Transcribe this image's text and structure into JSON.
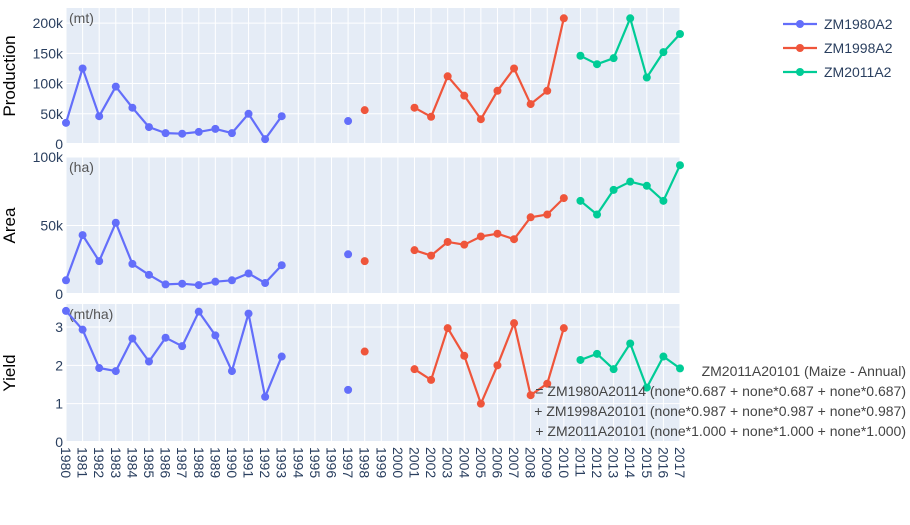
{
  "chart_data": {
    "type": "line",
    "x": [
      1980,
      1981,
      1982,
      1983,
      1984,
      1985,
      1986,
      1987,
      1988,
      1989,
      1990,
      1991,
      1992,
      1993,
      1994,
      1995,
      1996,
      1997,
      1998,
      1999,
      2000,
      2001,
      2002,
      2003,
      2004,
      2005,
      2006,
      2007,
      2008,
      2009,
      2010,
      2011,
      2012,
      2013,
      2014,
      2015,
      2016,
      2017
    ],
    "x_tick_labels": [
      "1980",
      "1981",
      "1982",
      "1983",
      "1984",
      "1985",
      "1986",
      "1987",
      "1988",
      "1989",
      "1990",
      "1991",
      "1992",
      "1993",
      "1994",
      "1995",
      "1996",
      "1997",
      "1998",
      "1999",
      "2000",
      "2001",
      "2002",
      "2003",
      "2004",
      "2005",
      "2006",
      "2007",
      "2008",
      "2009",
      "2010",
      "2011",
      "2012",
      "2013",
      "2014",
      "2015",
      "2016",
      "2017"
    ],
    "series": [
      {
        "name": "ZM1980A2",
        "color": "#636efa"
      },
      {
        "name": "ZM1998A2",
        "color": "#ef553b"
      },
      {
        "name": "ZM2011A2",
        "color": "#00cc96"
      }
    ],
    "panels": [
      {
        "id": "production",
        "ylabel": "Production",
        "unit": "(mt)",
        "ylim": [
          0,
          225000
        ],
        "yticks": [
          0,
          50000,
          100000,
          150000,
          200000
        ],
        "ytick_labels": [
          "0",
          "50k",
          "100k",
          "150k",
          "200k"
        ],
        "data": [
          [
            [
              1980,
              35000
            ],
            [
              1981,
              125000
            ],
            [
              1982,
              46000
            ],
            [
              1983,
              95000
            ],
            [
              1984,
              60000
            ],
            [
              1985,
              28000
            ],
            [
              1986,
              18000
            ],
            [
              1987,
              17000
            ],
            [
              1988,
              20000
            ],
            [
              1989,
              25000
            ],
            [
              1990,
              18000
            ],
            [
              1991,
              50000
            ],
            [
              1992,
              8000
            ],
            [
              1993,
              46000
            ],
            [
              1997,
              38000
            ]
          ],
          [
            [
              1998,
              56000
            ],
            [
              2001,
              60000
            ],
            [
              2002,
              45000
            ],
            [
              2003,
              112000
            ],
            [
              2004,
              80000
            ],
            [
              2005,
              41000
            ],
            [
              2006,
              88000
            ],
            [
              2007,
              125000
            ],
            [
              2008,
              66000
            ],
            [
              2009,
              88000
            ],
            [
              2010,
              208000
            ]
          ],
          [
            [
              2011,
              146000
            ],
            [
              2012,
              132000
            ],
            [
              2013,
              142000
            ],
            [
              2014,
              208000
            ],
            [
              2015,
              110000
            ],
            [
              2016,
              152000
            ],
            [
              2017,
              182000
            ]
          ]
        ]
      },
      {
        "id": "area",
        "ylabel": "Area",
        "unit": "(ha)",
        "ylim": [
          0,
          100000
        ],
        "yticks": [
          0,
          50000,
          100000
        ],
        "ytick_labels": [
          "0",
          "50k",
          "100k"
        ],
        "data": [
          [
            [
              1980,
              10000
            ],
            [
              1981,
              43000
            ],
            [
              1982,
              24000
            ],
            [
              1983,
              52000
            ],
            [
              1984,
              22000
            ],
            [
              1985,
              14000
            ],
            [
              1986,
              7000
            ],
            [
              1987,
              7500
            ],
            [
              1988,
              6500
            ],
            [
              1989,
              9000
            ],
            [
              1990,
              10000
            ],
            [
              1991,
              15000
            ],
            [
              1992,
              8000
            ],
            [
              1993,
              21000
            ],
            [
              1997,
              29000
            ]
          ],
          [
            [
              1998,
              24000
            ],
            [
              2001,
              32000
            ],
            [
              2002,
              28000
            ],
            [
              2003,
              38000
            ],
            [
              2004,
              36000
            ],
            [
              2005,
              42000
            ],
            [
              2006,
              44000
            ],
            [
              2007,
              40000
            ],
            [
              2008,
              56000
            ],
            [
              2009,
              58000
            ],
            [
              2010,
              70000
            ]
          ],
          [
            [
              2011,
              68000
            ],
            [
              2012,
              58000
            ],
            [
              2013,
              76000
            ],
            [
              2014,
              82000
            ],
            [
              2015,
              79000
            ],
            [
              2016,
              68000
            ],
            [
              2017,
              94000
            ]
          ]
        ]
      },
      {
        "id": "yield",
        "ylabel": "Yield",
        "unit": "(mt/ha)",
        "ylim": [
          0,
          3.6
        ],
        "yticks": [
          0,
          1,
          2,
          3
        ],
        "ytick_labels": [
          "0",
          "1",
          "2",
          "3"
        ],
        "data": [
          [
            [
              1980,
              3.42
            ],
            [
              1981,
              2.93
            ],
            [
              1982,
              1.93
            ],
            [
              1983,
              1.85
            ],
            [
              1984,
              2.7
            ],
            [
              1985,
              2.1
            ],
            [
              1986,
              2.72
            ],
            [
              1987,
              2.5
            ],
            [
              1988,
              3.4
            ],
            [
              1989,
              2.78
            ],
            [
              1990,
              1.85
            ],
            [
              1991,
              3.35
            ],
            [
              1992,
              1.18
            ],
            [
              1993,
              2.23
            ],
            [
              1997,
              1.36
            ]
          ],
          [
            [
              1998,
              2.36
            ],
            [
              2001,
              1.9
            ],
            [
              2002,
              1.62
            ],
            [
              2003,
              2.97
            ],
            [
              2004,
              2.25
            ],
            [
              2005,
              1.0
            ],
            [
              2006,
              2.0
            ],
            [
              2007,
              3.1
            ],
            [
              2008,
              1.22
            ],
            [
              2009,
              1.52
            ],
            [
              2010,
              2.97
            ]
          ],
          [
            [
              2011,
              2.14
            ],
            [
              2012,
              2.3
            ],
            [
              2013,
              1.9
            ],
            [
              2014,
              2.57
            ],
            [
              2015,
              1.42
            ],
            [
              2016,
              2.23
            ],
            [
              2017,
              1.92
            ]
          ]
        ]
      }
    ],
    "annotation_lines": [
      "ZM2011A20101 (Maize - Annual)",
      "= ZM1980A20114 (none*0.687 + none*0.687 + none*0.687)",
      "+ ZM1998A20101 (none*0.987 + none*0.987 + none*0.987)",
      "+ ZM2011A20101 (none*1.000 + none*1.000 + none*1.000)"
    ],
    "grid": true,
    "legend_position": "top-right"
  }
}
